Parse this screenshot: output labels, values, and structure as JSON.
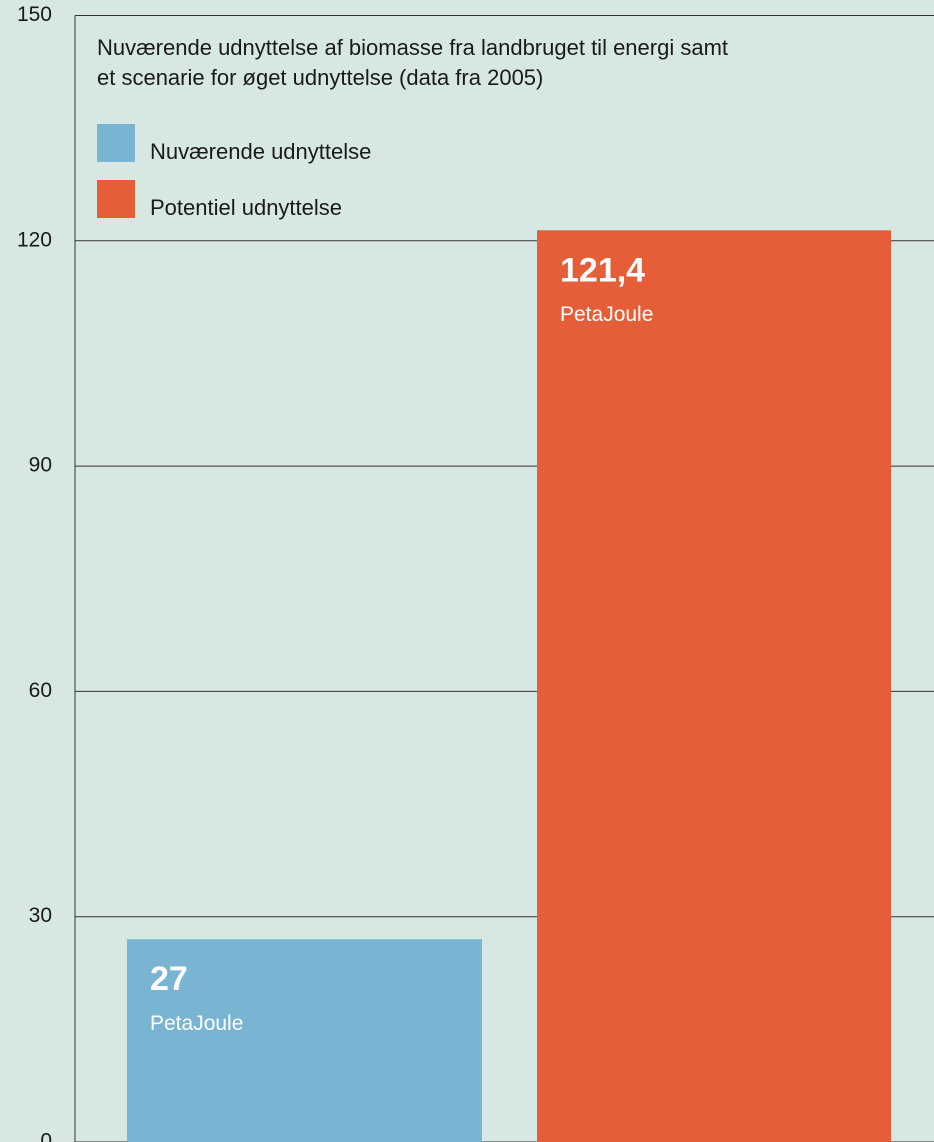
{
  "chart_data": {
    "type": "bar",
    "title": [
      "Nuværende udnyttelse af biomasse fra landbruget til energi samt",
      "et scenarie for øget udnyttelse (data fra 2005)"
    ],
    "categories": [
      null
    ],
    "series": [
      {
        "name": "Nuværende udnyttelse",
        "color": "#79b4d2",
        "values": [
          27
        ],
        "value_labels": [
          "27"
        ]
      },
      {
        "name": "Potentiel udnyttelse",
        "color": "#e65e38",
        "values": [
          121.4
        ],
        "value_labels": [
          "121,4"
        ]
      }
    ],
    "unit_label": "PetaJoule",
    "ylim": [
      0,
      150
    ],
    "yticks": [
      0,
      30,
      60,
      90,
      120,
      150
    ],
    "grid": true
  }
}
